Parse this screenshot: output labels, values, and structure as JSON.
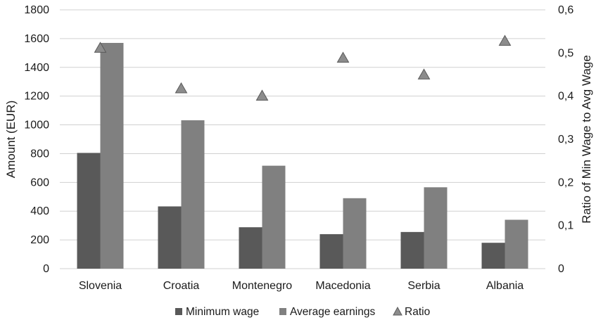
{
  "chart_data": {
    "type": "bar",
    "categories": [
      "Slovenia",
      "Croatia",
      "Montenegro",
      "Macedonia",
      "Serbia",
      "Albania"
    ],
    "series": [
      {
        "name": "Minimum wage",
        "type": "bar",
        "axis": "left",
        "color": "#595959",
        "values": [
          805,
          433,
          288,
          240,
          255,
          180
        ]
      },
      {
        "name": "Average earnings",
        "type": "bar",
        "axis": "left",
        "color": "#808080",
        "values": [
          1570,
          1032,
          716,
          490,
          566,
          340
        ]
      },
      {
        "name": "Ratio",
        "type": "scatter",
        "marker": "triangle",
        "axis": "right",
        "color": "#8c8c8c",
        "values": [
          0.513,
          0.419,
          0.402,
          0.49,
          0.451,
          0.529
        ]
      }
    ],
    "ylabel": "Amount (EUR)",
    "ylabel_right": "Ratio of Min Wage to Avg Wage",
    "ylim": [
      0,
      1800
    ],
    "yticks": [
      "0",
      "200",
      "400",
      "600",
      "800",
      "1000",
      "1200",
      "1400",
      "1600",
      "1800"
    ],
    "ylim_right": [
      0,
      0.6
    ],
    "yticks_right": [
      "0",
      "0,1",
      "0,2",
      "0,3",
      "0,4",
      "0,5",
      "0,6"
    ],
    "grid": true,
    "legend_position": "bottom"
  }
}
